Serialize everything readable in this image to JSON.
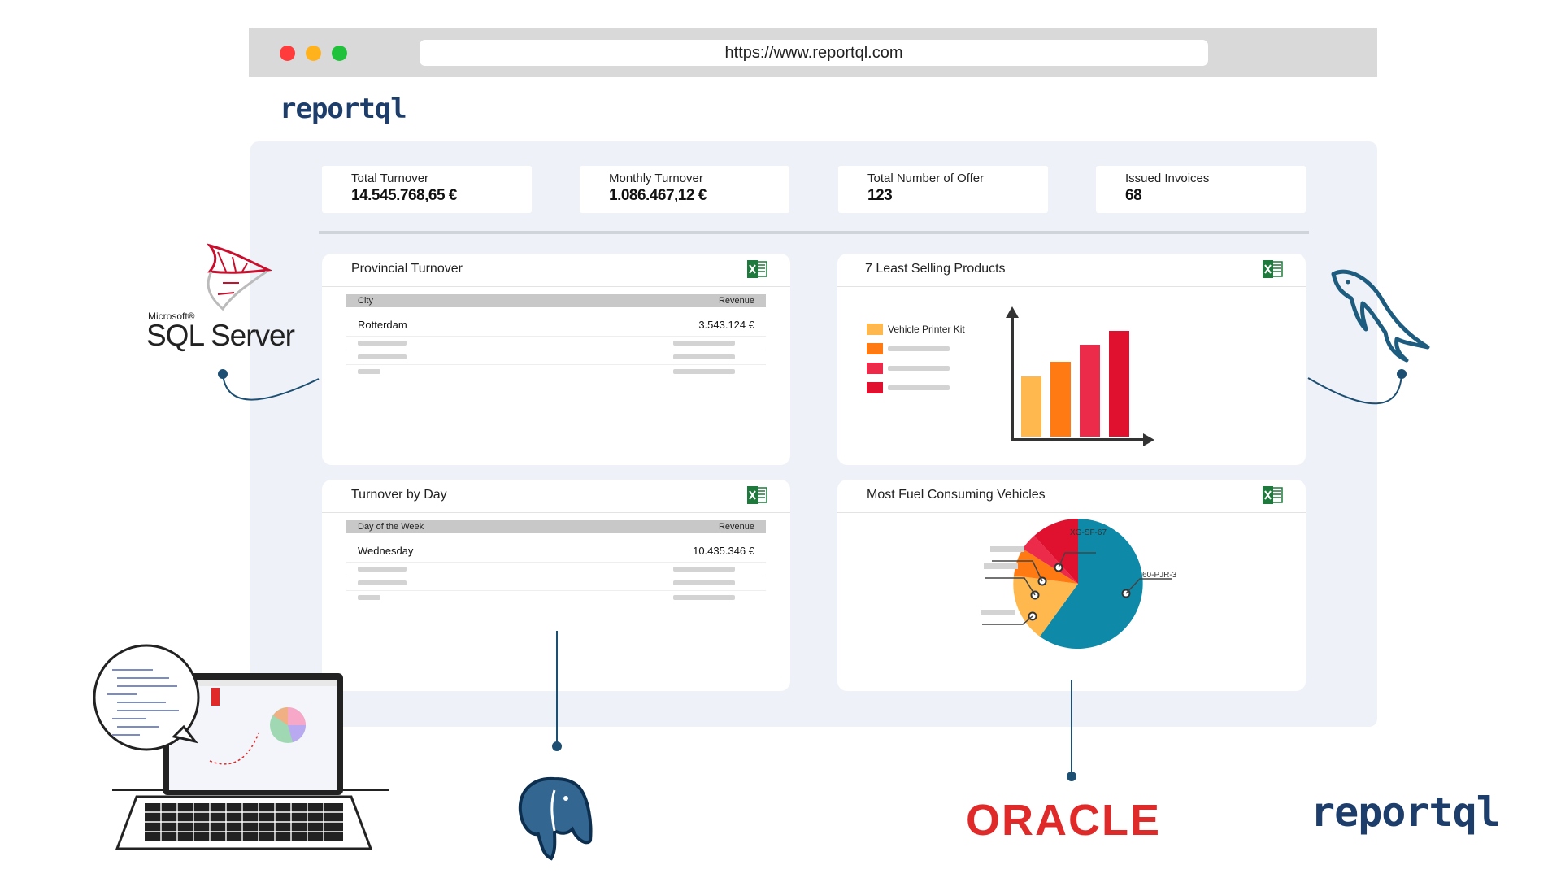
{
  "browser": {
    "url": "https://www.reportql.com"
  },
  "brand": {
    "name": "reportql"
  },
  "kpis": [
    {
      "label": "Total Turnover",
      "value": "14.545.768,65 €"
    },
    {
      "label": "Monthly Turnover",
      "value": "1.086.467,12 €"
    },
    {
      "label": "Total Number of Offer",
      "value": "123"
    },
    {
      "label": "Issued Invoices",
      "value": "68"
    }
  ],
  "panels": {
    "provincial": {
      "title": "Provincial Turnover",
      "col1": "City",
      "col2": "Revenue",
      "row_city": "Rotterdam",
      "row_value": "3.543.124 €"
    },
    "least_selling": {
      "title": "7 Least Selling Products",
      "legend_first": "Vehicle Printer Kit"
    },
    "turnover_day": {
      "title": "Turnover by Day",
      "col1": "Day of the Week",
      "col2": "Revenue",
      "row_day": "Wednesday",
      "row_value": "10.435.346 €"
    },
    "fuel": {
      "title": "Most Fuel Consuming Vehicles",
      "label_a": "XG-SF-67",
      "label_b": "60-PJR-3"
    }
  },
  "logos": {
    "mssql_top": "Microsoft®",
    "mssql_main": "SQL Server",
    "oracle": "ORACLE"
  },
  "colors": {
    "accent": "#1d3d6b",
    "bar1": "#ffb84d",
    "bar2": "#ff7a12",
    "bar3": "#ec2b4b",
    "bar4": "#e0102f",
    "pie_main": "#0e8aa8",
    "oracle_red": "#e02a2a",
    "excel_green": "#1e7a3c"
  }
}
